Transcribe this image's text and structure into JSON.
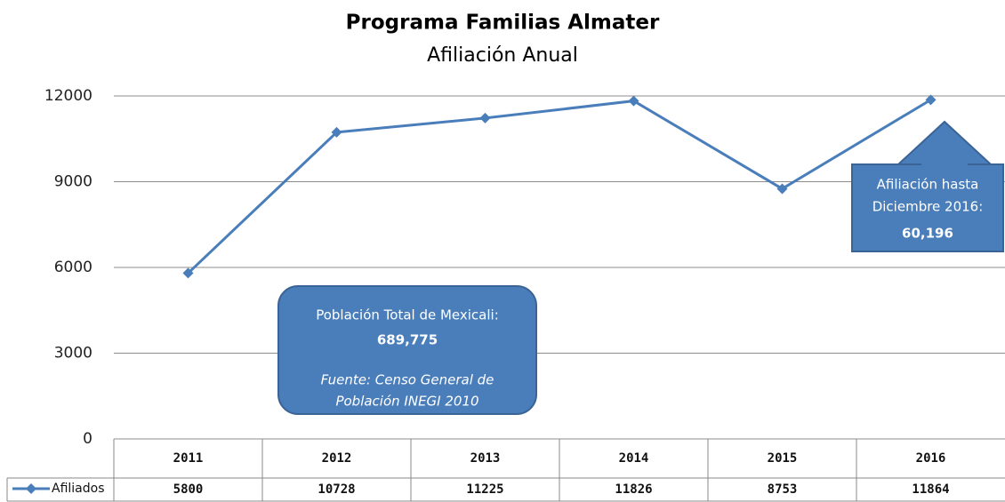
{
  "chart_data": {
    "type": "line",
    "title": "Programa Familias Almater",
    "subtitle": "Afiliación Anual",
    "categories": [
      "2011",
      "2012",
      "2013",
      "2014",
      "2015",
      "2016"
    ],
    "series": [
      {
        "name": "Afiliados",
        "color": "#4a7ebb",
        "values": [
          5800,
          10728,
          11225,
          11826,
          8753,
          11864
        ]
      }
    ],
    "ylim": [
      0,
      12000
    ],
    "yticks": [
      0,
      3000,
      6000,
      9000,
      12000
    ],
    "grid": true,
    "annotations": [
      {
        "lines": [
          "Población Total de Mexicali:",
          "689,775",
          "Fuente: Censo General de",
          "Población INEGI 2010"
        ]
      },
      {
        "lines": [
          "Afiliación hasta",
          "Diciembre 2016:",
          "60,196"
        ]
      }
    ]
  }
}
